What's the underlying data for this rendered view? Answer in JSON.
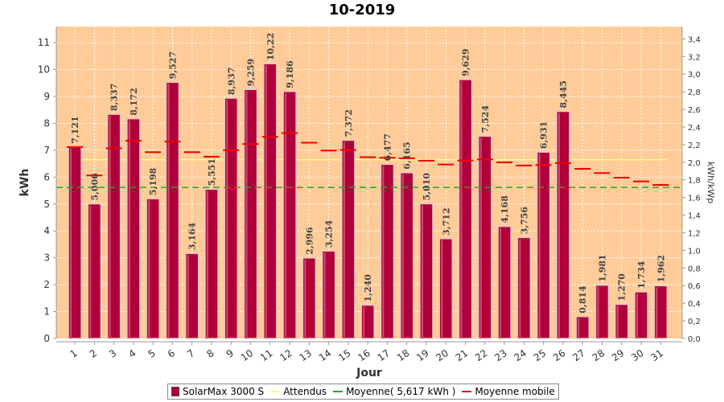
{
  "chart_data": {
    "type": "bar",
    "title": "10-2019",
    "xlabel": "Jour",
    "ylabel": "kWh",
    "ylabel_right": "kWh/kWp",
    "categories": [
      "1",
      "2",
      "3",
      "4",
      "5",
      "6",
      "7",
      "8",
      "9",
      "10",
      "11",
      "12",
      "13",
      "14",
      "15",
      "16",
      "17",
      "18",
      "19",
      "20",
      "21",
      "22",
      "23",
      "24",
      "25",
      "26",
      "27",
      "28",
      "29",
      "30",
      "31"
    ],
    "series": [
      {
        "name": "SolarMax 3000 S",
        "type": "bar",
        "color": "#b0003a",
        "values": [
          7.121,
          5.006,
          8.337,
          8.172,
          5.198,
          9.527,
          3.164,
          5.551,
          8.937,
          9.259,
          10.22,
          9.186,
          2.996,
          3.254,
          7.372,
          1.24,
          6.477,
          6.165,
          5.01,
          3.712,
          9.629,
          7.524,
          4.168,
          3.756,
          6.931,
          8.445,
          0.814,
          1.981,
          1.27,
          1.734,
          1.962
        ],
        "labels": [
          "7,121",
          "5,006",
          "8,337",
          "8,172",
          "5,198",
          "9,527",
          "3,164",
          "5,551",
          "8,937",
          "9,259",
          "10,22",
          "9,186",
          "2,996",
          "3,254",
          "7,372",
          "1,240",
          "6,477",
          "6,165",
          "5,010",
          "3,712",
          "9,629",
          "7,524",
          "4,168",
          "3,756",
          "6,931",
          "8,445",
          "0,814",
          "1,981",
          "1,270",
          "1,734",
          "1,962"
        ]
      },
      {
        "name": "Attendus",
        "type": "line",
        "color": "#ffff80",
        "value": 6.65
      },
      {
        "name": "Moyenne( 5,617 kWh )",
        "type": "line",
        "color": "#22aa22",
        "value": 5.617
      },
      {
        "name": "Moyenne mobile",
        "type": "line",
        "color": "#ee0000",
        "values": [
          7.12,
          6.06,
          7.07,
          7.35,
          6.93,
          7.32,
          6.93,
          6.76,
          7.0,
          7.23,
          7.5,
          7.64,
          7.28,
          6.99,
          7.01,
          6.74,
          6.72,
          6.7,
          6.61,
          6.47,
          6.62,
          6.66,
          6.55,
          6.43,
          6.45,
          6.52,
          6.31,
          6.15,
          5.98,
          5.84,
          5.71
        ]
      }
    ],
    "ylim": [
      0,
      11.6
    ],
    "yticks": [
      0,
      1,
      2,
      3,
      4,
      5,
      6,
      7,
      8,
      9,
      10,
      11
    ],
    "ylim_right": [
      0,
      3.54
    ],
    "yticks_right": [
      "0,0",
      "0,2",
      "0,4",
      "0,6",
      "0,8",
      "1,0",
      "1,2",
      "1,4",
      "1,6",
      "1,8",
      "2,0",
      "2,2",
      "2,4",
      "2,6",
      "2,8",
      "3,0",
      "3,2",
      "3,4"
    ],
    "grid": true,
    "legend_position": "bottom",
    "plot_background": "#ffcc99"
  }
}
